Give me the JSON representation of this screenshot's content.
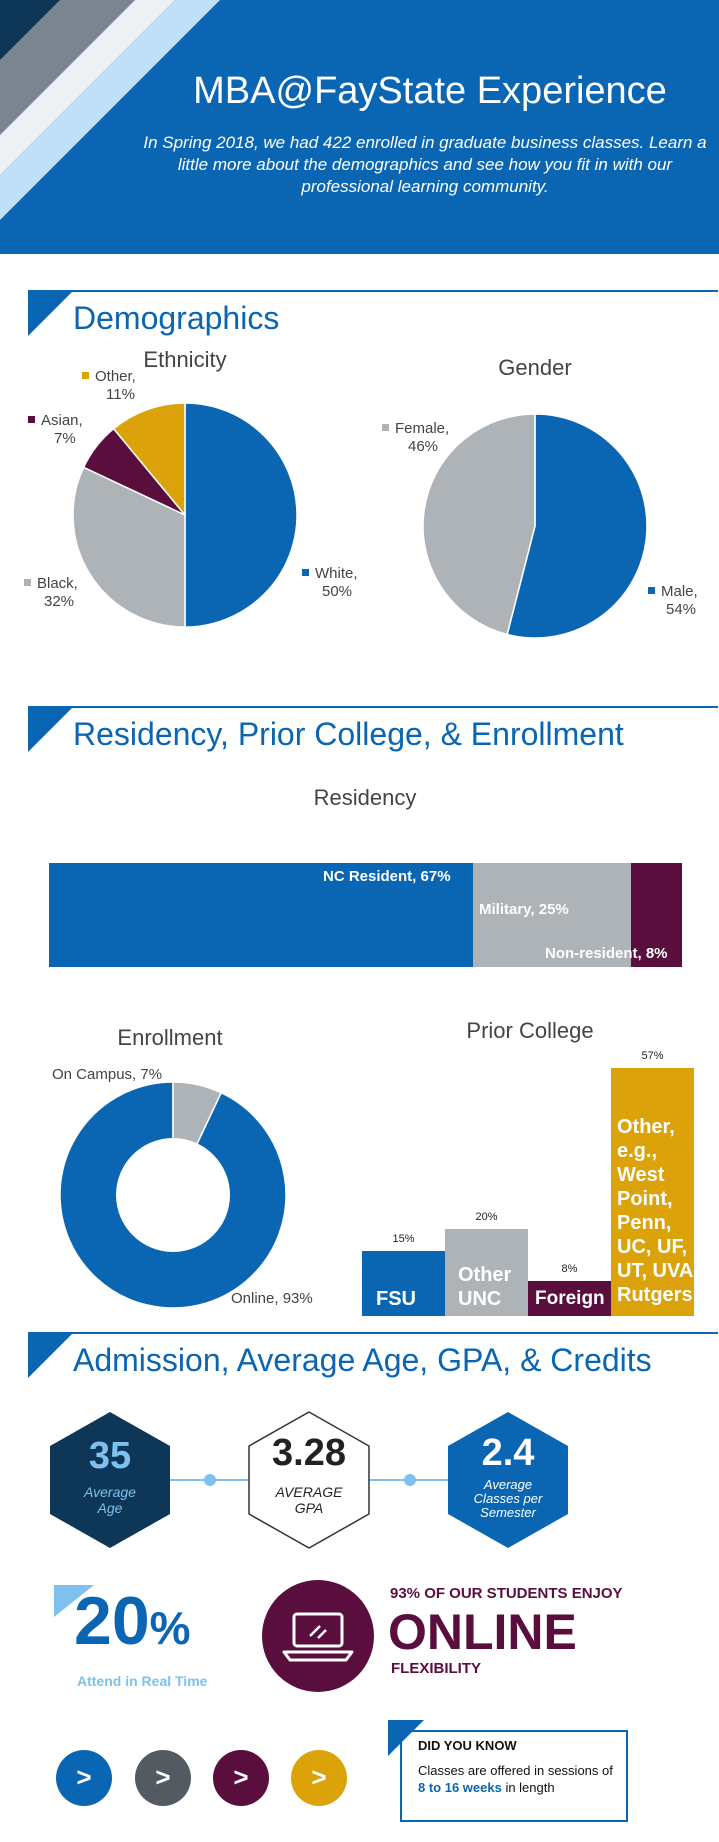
{
  "header": {
    "title": "MBA@FayState Experience",
    "intro": "In Spring 2018, we had 422 enrolled in graduate business classes. Learn a little more about the demographics and see how you fit in with our professional learning community."
  },
  "colors": {
    "blue": "#0a66b2",
    "gray": "#aeb3b8",
    "plum": "#5a0e3e",
    "gold": "#dba20a",
    "navy": "#0d3657",
    "light_blue": "#7ec1ee"
  },
  "sections": {
    "demographics": "Demographics",
    "residency": "Residency, Prior College, & Enrollment",
    "admission": "Admission, Average Age, GPA, & Credits"
  },
  "chart_data": [
    {
      "type": "pie",
      "title": "Ethnicity",
      "slices": [
        {
          "name": "White",
          "value": 50,
          "label": "White,",
          "pct": "50%"
        },
        {
          "name": "Black",
          "value": 32,
          "label": "Black,",
          "pct": "32%"
        },
        {
          "name": "Asian",
          "value": 7,
          "label": "Asian,",
          "pct": "7%"
        },
        {
          "name": "Other",
          "value": 11,
          "label": "Other,",
          "pct": "11%"
        }
      ]
    },
    {
      "type": "pie",
      "title": "Gender",
      "slices": [
        {
          "name": "Male",
          "value": 54,
          "label": "Male,",
          "pct": "54%"
        },
        {
          "name": "Female",
          "value": 46,
          "label": "Female,",
          "pct": "46%"
        }
      ]
    },
    {
      "type": "bar",
      "title": "Residency",
      "orientation": "stacked-horizontal",
      "categories": [
        "NC Resident",
        "Military",
        "Non-resident"
      ],
      "values": [
        67,
        25,
        8
      ],
      "labels": [
        "NC Resident, 67%",
        "Military, 25%",
        "Non-resident, 8%"
      ]
    },
    {
      "type": "pie",
      "subtype": "donut",
      "title": "Enrollment",
      "slices": [
        {
          "name": "Online",
          "value": 93,
          "label": "Online, 93%"
        },
        {
          "name": "On Campus",
          "value": 7,
          "label": "On Campus, 7%"
        }
      ]
    },
    {
      "type": "bar",
      "title": "Prior College",
      "categories": [
        "FSU",
        "Other UNC",
        "Foreign",
        "Other, e.g., West Point, Penn, UC, UF, UT, UVA Rutgers"
      ],
      "values": [
        15,
        20,
        8,
        57
      ],
      "value_labels": [
        "15%",
        "20%",
        "8%",
        "57%"
      ],
      "ylim": [
        0,
        57
      ]
    }
  ],
  "stats": {
    "age": {
      "value": "35",
      "label": "Average Age"
    },
    "gpa": {
      "value": "3.28",
      "label": "AVERAGE GPA"
    },
    "classes": {
      "value": "2.4",
      "label": "Average Classes per Semester"
    }
  },
  "realtime": {
    "number": "20",
    "unit": "%",
    "label": "Attend in Real Time"
  },
  "online": {
    "lead": "93% OF OUR STUDENTS ENJOY",
    "big": "ONLINE",
    "tail": "FLEXIBILITY",
    "icon": "laptop-icon"
  },
  "did_you_know": {
    "title": "DID YOU KNOW",
    "text_before": "Classes are offered in sessions of ",
    "highlight": "8 to 16 weeks",
    "text_after": " in length"
  },
  "nav": {
    "symbol": ">"
  }
}
